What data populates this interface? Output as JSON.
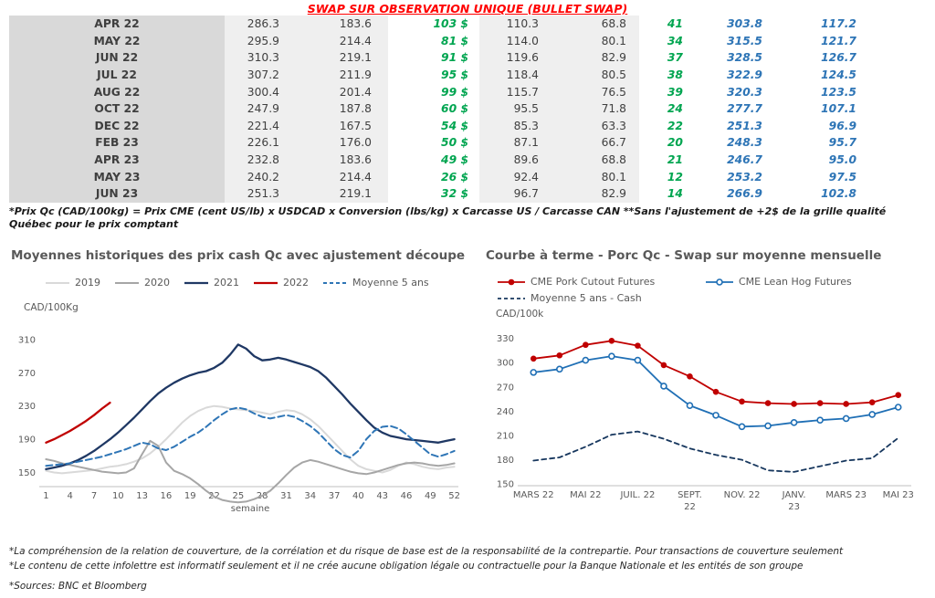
{
  "page_title": "SWAP SUR OBSERVATION UNIQUE (BULLET SWAP)",
  "table": {
    "rows": [
      [
        "APR 22",
        "286.3",
        "183.6",
        "103 $",
        "110.3",
        "68.8",
        "41",
        "303.8",
        "117.2"
      ],
      [
        "MAY 22",
        "295.9",
        "214.4",
        "81 $",
        "114.0",
        "80.1",
        "34",
        "315.5",
        "121.7"
      ],
      [
        "JUN 22",
        "310.3",
        "219.1",
        "91 $",
        "119.6",
        "82.9",
        "37",
        "328.5",
        "126.7"
      ],
      [
        "JUL 22",
        "307.2",
        "211.9",
        "95 $",
        "118.4",
        "80.5",
        "38",
        "322.9",
        "124.5"
      ],
      [
        "AUG 22",
        "300.4",
        "201.4",
        "99 $",
        "115.7",
        "76.5",
        "39",
        "320.3",
        "123.5"
      ],
      [
        "OCT 22",
        "247.9",
        "187.8",
        "60 $",
        "95.5",
        "71.8",
        "24",
        "277.7",
        "107.1"
      ],
      [
        "DEC 22",
        "221.4",
        "167.5",
        "54 $",
        "85.3",
        "63.3",
        "22",
        "251.3",
        "96.9"
      ],
      [
        "FEB 23",
        "226.1",
        "176.0",
        "50 $",
        "87.1",
        "66.7",
        "20",
        "248.3",
        "95.7"
      ],
      [
        "APR 23",
        "232.8",
        "183.6",
        "49 $",
        "89.6",
        "68.8",
        "21",
        "246.7",
        "95.0"
      ],
      [
        "MAY 23",
        "240.2",
        "214.4",
        "26 $",
        "92.4",
        "80.1",
        "12",
        "253.2",
        "97.5"
      ],
      [
        "JUN 23",
        "251.3",
        "219.1",
        "32 $",
        "96.7",
        "82.9",
        "14",
        "266.9",
        "102.8"
      ]
    ],
    "footnote": "*Prix Qc (CAD/100kg) = Prix CME (cent US/lb) x USDCAD x Conversion (lbs/kg) x Carcasse US / Carcasse CAN **Sans l'ajustement de +2$ de la grille qualité Québec pour le prix comptant"
  },
  "chart_data": [
    {
      "type": "line",
      "title": "Moyennes historiques des prix cash Qc avec ajustement découpe",
      "ylabel": "CAD/100Kg",
      "xlabel": "semaine",
      "grid": false,
      "legend_position": "top",
      "xstart": 1,
      "xlim": [
        0.5,
        52.5
      ],
      "ylim": [
        133,
        322
      ],
      "yticks": [
        150,
        190,
        230,
        270,
        310
      ],
      "xticks": [
        1,
        4,
        7,
        10,
        13,
        16,
        19,
        22,
        25,
        28,
        31,
        34,
        37,
        40,
        43,
        46,
        49,
        52
      ],
      "series": [
        {
          "name": "2019",
          "color": "#d9d9d9",
          "width": 2,
          "values": [
            152,
            150,
            149,
            150,
            151,
            152,
            153,
            155,
            157,
            158,
            160,
            163,
            167,
            173,
            181,
            190,
            200,
            210,
            218,
            224,
            228,
            230,
            229,
            227,
            226,
            225,
            224,
            222,
            220,
            223,
            225,
            224,
            220,
            214,
            206,
            196,
            186,
            176,
            166,
            158,
            154,
            152,
            150,
            153,
            158,
            162,
            160,
            157,
            155,
            154,
            156,
            157
          ]
        },
        {
          "name": "2020",
          "color": "#a6a6a6",
          "width": 2,
          "values": [
            166,
            164,
            161,
            159,
            157,
            155,
            153,
            151,
            150,
            149,
            150,
            155,
            172,
            188,
            182,
            162,
            152,
            148,
            143,
            136,
            128,
            121,
            117,
            115,
            114,
            115,
            118,
            122,
            128,
            137,
            147,
            156,
            162,
            165,
            163,
            160,
            157,
            154,
            151,
            149,
            148,
            150,
            153,
            156,
            159,
            161,
            162,
            161,
            159,
            158,
            159,
            161
          ]
        },
        {
          "name": "2021",
          "color": "#1f3864",
          "width": 2.3,
          "values": [
            154,
            156,
            158,
            161,
            165,
            170,
            176,
            183,
            190,
            198,
            207,
            216,
            226,
            236,
            245,
            252,
            258,
            263,
            267,
            270,
            272,
            276,
            282,
            292,
            304,
            299,
            290,
            285,
            286,
            288,
            286,
            283,
            280,
            277,
            272,
            264,
            254,
            244,
            233,
            223,
            213,
            204,
            198,
            194,
            192,
            190,
            189,
            188,
            187,
            186,
            188,
            190
          ]
        },
        {
          "name": "2022",
          "color": "#c00000",
          "width": 2.3,
          "values": [
            186,
            190,
            195,
            200,
            206,
            212,
            219,
            227,
            234
          ]
        },
        {
          "name": "Moyenne 5 ans",
          "color": "#2e75b6",
          "width": 2,
          "dash": "7 4",
          "values": [
            158,
            159,
            160,
            161,
            163,
            165,
            167,
            169,
            172,
            175,
            178,
            182,
            186,
            184,
            179,
            177,
            181,
            187,
            193,
            198,
            205,
            213,
            220,
            226,
            228,
            226,
            221,
            217,
            215,
            217,
            219,
            217,
            212,
            206,
            198,
            188,
            178,
            171,
            168,
            176,
            190,
            200,
            205,
            206,
            203,
            196,
            188,
            180,
            172,
            169,
            172,
            176
          ]
        }
      ]
    },
    {
      "type": "line",
      "title": "Courbe à terme - Porc Qc - Swap sur moyenne mensuelle",
      "ylabel": "CAD/100k",
      "xlabel": "",
      "grid": false,
      "legend_position": "top",
      "xstart": 0,
      "xlim": [
        -0.5,
        14.5
      ],
      "ylim": [
        148,
        342
      ],
      "yticks": [
        150,
        180,
        210,
        240,
        270,
        300,
        330
      ],
      "xticks": [
        {
          "x": 0,
          "label": "MARS 22"
        },
        {
          "x": 2,
          "label": "MAI 22"
        },
        {
          "x": 4,
          "label": "JUIL. 22"
        },
        {
          "x": 6,
          "label": [
            "SEPT.",
            "22"
          ]
        },
        {
          "x": 8,
          "label": "NOV. 22"
        },
        {
          "x": 10,
          "label": [
            "JANV.",
            "23"
          ]
        },
        {
          "x": 12,
          "label": "MARS 23"
        },
        {
          "x": 14,
          "label": "MAI 23"
        }
      ],
      "series": [
        {
          "name": "CME Pork Cutout Futures",
          "color": "#c00000",
          "width": 1.8,
          "marker": "dot",
          "values": [
            305,
            309,
            322,
            327,
            321,
            297,
            283,
            264,
            252,
            250,
            249,
            250,
            249,
            251,
            260
          ]
        },
        {
          "name": "CME Lean Hog Futures",
          "color": "#1f6fb5",
          "width": 1.8,
          "marker": "circle",
          "values": [
            288,
            292,
            303,
            308,
            303,
            271,
            247,
            235,
            221,
            222,
            226,
            229,
            231,
            236,
            245
          ]
        },
        {
          "name": "Moyenne 5 ans - Cash",
          "color": "#17375e",
          "width": 1.8,
          "dash": "5 4",
          "values": [
            179,
            183,
            196,
            211,
            215,
            206,
            194,
            186,
            180,
            167,
            165,
            172,
            179,
            182,
            207
          ]
        }
      ]
    }
  ],
  "footnotes": [
    "*La compréhension de la relation de couverture, de la corrélation et du risque de base est de la responsabilité de la contrepartie. Pour transactions de couverture seulement",
    "*Le contenu de cette infolettre est informatif seulement et il ne crée aucune obligation légale ou contractuelle pour la Banque Nationale et les entités de son groupe",
    "*Sources: BNC et Bloomberg"
  ],
  "colors": {
    "title_red": "#ff0000",
    "green_value": "#00a550",
    "blue_value": "#2e75b6",
    "month_band_gray": "#d9d9d9",
    "value_band_gray": "#efefef",
    "section_title_gray": "#595959"
  }
}
